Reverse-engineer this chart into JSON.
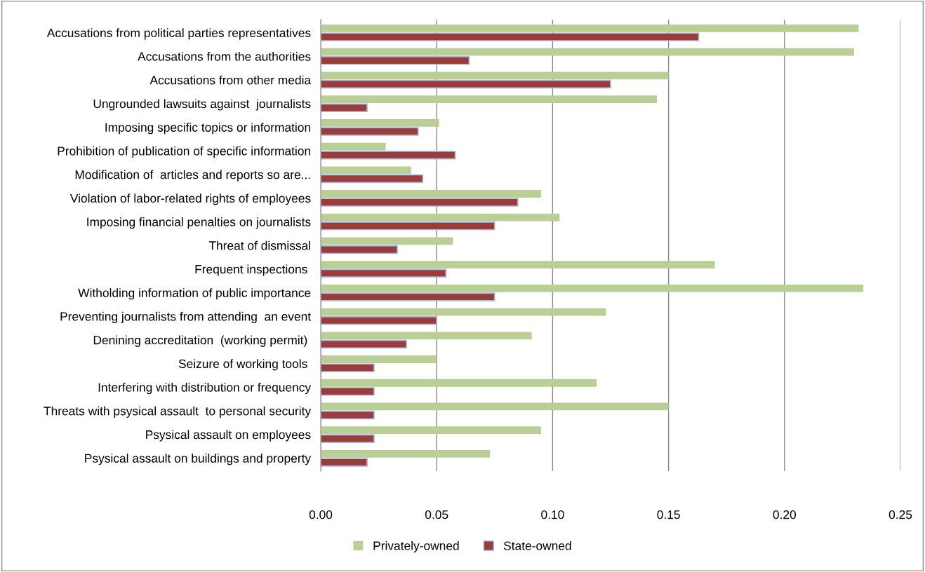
{
  "chart_data": {
    "type": "bar",
    "orientation": "horizontal",
    "categories": [
      "Accusations from political parties representatives",
      "Accusations from the authorities",
      "Accusations from other media",
      "Ungrounded lawsuits against  journalists",
      "Imposing specific topics or information",
      "Prohibition of publication of specific information",
      "Modification of  articles and reports so are...",
      "Violation of labor-related rights of employees",
      "Imposing financial penalties on journalists",
      "Threat of dismissal",
      "Frequent inspections ",
      "Witholding information of public importance",
      "Preventing journalists from attending  an event",
      "Denining accreditation  (working permit) ",
      "Seizure of working tools ",
      "Interfering with distribution or frequency",
      "Threats with psysical assault  to personal security",
      "Psysical assault on employees",
      "Psysical assault on buildings and property"
    ],
    "series": [
      {
        "name": "Privately-owned",
        "color": "#b9cf96",
        "values": [
          0.232,
          0.23,
          0.15,
          0.145,
          0.051,
          0.028,
          0.039,
          0.095,
          0.103,
          0.057,
          0.17,
          0.234,
          0.123,
          0.091,
          0.05,
          0.119,
          0.15,
          0.095,
          0.073
        ]
      },
      {
        "name": "State-owned",
        "color": "#9b3b3a",
        "values": [
          0.163,
          0.064,
          0.125,
          0.02,
          0.042,
          0.058,
          0.044,
          0.085,
          0.075,
          0.033,
          0.054,
          0.075,
          0.05,
          0.037,
          0.023,
          0.023,
          0.023,
          0.023,
          0.02
        ]
      }
    ],
    "xlim": [
      0,
      0.25
    ],
    "xticks": [
      {
        "value": 0,
        "label": "0.00"
      },
      {
        "value": 0.05,
        "label": "0.05"
      },
      {
        "value": 0.1,
        "label": "0.10"
      },
      {
        "value": 0.15,
        "label": "0.15"
      },
      {
        "value": 0.2,
        "label": "0.20"
      },
      {
        "value": 0.25,
        "label": "0.25"
      }
    ],
    "grid": "x",
    "legend": "bottom"
  }
}
